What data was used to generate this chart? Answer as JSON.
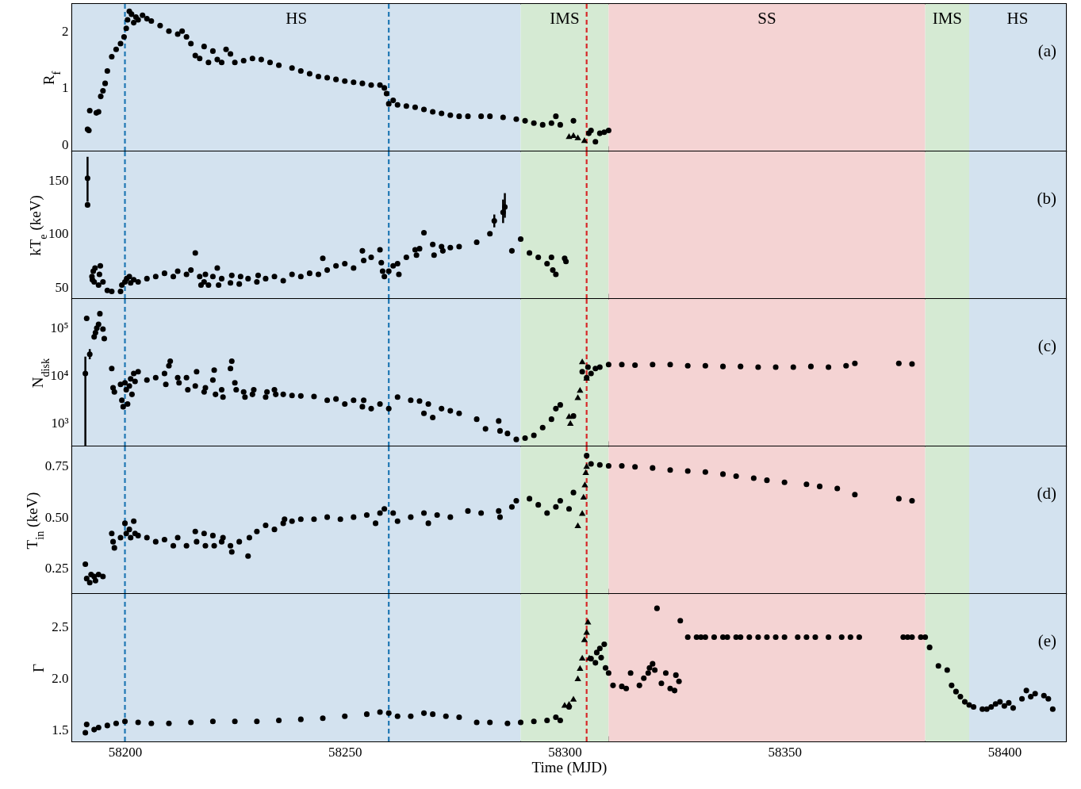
{
  "chart_data": [
    {
      "type": "scatter",
      "ylabel": "R$_{f}$",
      "xlim": [
        58188,
        58414
      ],
      "ylim": [
        -0.12,
        2.48
      ],
      "yticks": [
        0,
        1,
        2
      ],
      "tick_labels": "y",
      "grid": false,
      "xticks": [
        {
          "value": 58190,
          "label": null
        },
        58200,
        {
          "value": 58210,
          "label": null
        },
        {
          "value": 58220,
          "label": null
        },
        {
          "value": 58230,
          "label": null
        },
        {
          "value": 58240,
          "label": null
        },
        58250,
        {
          "value": 58260,
          "label": null
        },
        {
          "value": 58270,
          "label": null
        },
        {
          "value": 58280,
          "label": null
        },
        {
          "value": 58290,
          "label": null
        },
        58300,
        {
          "value": 58310,
          "label": null
        },
        {
          "value": 58320,
          "label": null
        },
        {
          "value": 58330,
          "label": null
        },
        {
          "value": 58340,
          "label": null
        },
        58350,
        {
          "value": 58360,
          "label": null
        },
        {
          "value": 58370,
          "label": null
        },
        {
          "value": 58380,
          "label": null
        },
        {
          "value": 58390,
          "label": null
        },
        58400,
        {
          "value": 58410,
          "label": null
        }
      ],
      "bands": [
        {
          "axis": "x",
          "from": 58188,
          "to": 58290,
          "label": "HS",
          "color": "#d3e2ef"
        },
        {
          "axis": "x",
          "from": 58290,
          "to": 58310,
          "label": "IMS",
          "color": "#d5ead3"
        },
        {
          "axis": "x",
          "from": 58310,
          "to": 58382,
          "label": "SS",
          "color": "#f4d3d3"
        },
        {
          "axis": "x",
          "from": 58382,
          "to": 58392,
          "label": "IMS",
          "color": "#d5ead3"
        },
        {
          "axis": "x",
          "from": 58392,
          "to": 58414,
          "label": "HS",
          "color": "#d3e2ef"
        }
      ],
      "ref_lines": [
        {
          "axis": "x",
          "value": 58200,
          "color": "#1f77b4",
          "line_style": "dashed"
        },
        {
          "axis": "x",
          "value": 58260,
          "color": "#1f77b4",
          "line_style": "dashed"
        },
        {
          "axis": "x",
          "value": 58305,
          "color": "#d62728",
          "line_style": "dashed"
        }
      ],
      "annotations": [
        "(a)"
      ],
      "series": [
        {
          "color": "#000000",
          "marker": "circle",
          "x": [
            58191.5,
            58191.8,
            58192,
            58193.5,
            58194,
            58194.5,
            58195,
            58195.5,
            58196,
            58197,
            58198,
            58199,
            58199.8,
            58200.3,
            58200.6,
            58201,
            58201.5,
            58202,
            58202.5,
            58203,
            58204,
            58205,
            58206,
            58208,
            58210,
            58212,
            58213,
            58214,
            58215,
            58216,
            58217,
            58218,
            58219,
            58220,
            58221,
            58222,
            58223,
            58224,
            58225,
            58227,
            58229,
            58231,
            58233,
            58235,
            58238,
            58240,
            58242,
            58244,
            58246,
            58248,
            58250,
            58252,
            58254,
            58256,
            58258,
            58259,
            58259.5,
            58260,
            58261,
            58262,
            58264,
            58266,
            58268,
            58270,
            58272,
            58274,
            58276,
            58278,
            58281,
            58283,
            58286,
            58289,
            58291,
            58293,
            58295,
            58297,
            58298,
            58299,
            58302,
            58305.5,
            58306,
            58307,
            58308,
            58309,
            58310
          ],
          "values": [
            0.27,
            0.25,
            0.6,
            0.56,
            0.58,
            0.85,
            0.95,
            1.08,
            1.3,
            1.55,
            1.68,
            1.78,
            1.9,
            2.05,
            2.2,
            2.35,
            2.3,
            2.15,
            2.25,
            2.2,
            2.28,
            2.22,
            2.18,
            2.1,
            2.0,
            1.95,
            2.0,
            1.9,
            1.78,
            1.57,
            1.52,
            1.73,
            1.45,
            1.65,
            1.5,
            1.45,
            1.68,
            1.6,
            1.45,
            1.48,
            1.52,
            1.5,
            1.45,
            1.4,
            1.35,
            1.3,
            1.25,
            1.2,
            1.18,
            1.15,
            1.12,
            1.1,
            1.08,
            1.05,
            1.05,
            1.0,
            0.9,
            0.72,
            0.78,
            0.7,
            0.68,
            0.66,
            0.62,
            0.58,
            0.55,
            0.52,
            0.5,
            0.5,
            0.5,
            0.5,
            0.48,
            0.45,
            0.42,
            0.38,
            0.35,
            0.38,
            0.5,
            0.35,
            0.42,
            0.2,
            0.25,
            0.05,
            0.2,
            0.22,
            0.25
          ]
        },
        {
          "color": "#000000",
          "marker": "triangle",
          "x": [
            58301,
            58302,
            58303,
            58304.5
          ],
          "values": [
            0.15,
            0.17,
            0.13,
            0.08
          ]
        }
      ]
    },
    {
      "type": "scatter",
      "ylabel": "kT$_{e}$ (keV)",
      "xlim": [
        58188,
        58414
      ],
      "ylim": [
        39,
        177
      ],
      "yticks": [
        50,
        100,
        150
      ],
      "tick_labels": "y",
      "grid": false,
      "xticks": [
        {
          "value": 58190,
          "label": null
        },
        58200,
        {
          "value": 58210,
          "label": null
        },
        {
          "value": 58220,
          "label": null
        },
        {
          "value": 58230,
          "label": null
        },
        {
          "value": 58240,
          "label": null
        },
        58250,
        {
          "value": 58260,
          "label": null
        },
        {
          "value": 58270,
          "label": null
        },
        {
          "value": 58280,
          "label": null
        },
        {
          "value": 58290,
          "label": null
        },
        58300,
        {
          "value": 58310,
          "label": null
        },
        {
          "value": 58320,
          "label": null
        },
        {
          "value": 58330,
          "label": null
        },
        {
          "value": 58340,
          "label": null
        },
        58350,
        {
          "value": 58360,
          "label": null
        },
        {
          "value": 58370,
          "label": null
        },
        {
          "value": 58380,
          "label": null
        },
        {
          "value": 58390,
          "label": null
        },
        58400,
        {
          "value": 58410,
          "label": null
        }
      ],
      "bands": [
        {
          "axis": "x",
          "from": 58188,
          "to": 58290,
          "color": "#d3e2ef"
        },
        {
          "axis": "x",
          "from": 58290,
          "to": 58310,
          "color": "#d5ead3"
        },
        {
          "axis": "x",
          "from": 58310,
          "to": 58382,
          "color": "#f4d3d3"
        },
        {
          "axis": "x",
          "from": 58382,
          "to": 58392,
          "color": "#d5ead3"
        },
        {
          "axis": "x",
          "from": 58392,
          "to": 58414,
          "color": "#d3e2ef"
        }
      ],
      "ref_lines": [
        {
          "axis": "x",
          "value": 58200,
          "color": "#1f77b4",
          "line_style": "dashed"
        },
        {
          "axis": "x",
          "value": 58260,
          "color": "#1f77b4",
          "line_style": "dashed"
        },
        {
          "axis": "x",
          "value": 58305,
          "color": "#d62728",
          "line_style": "dashed"
        }
      ],
      "annotations": [
        "(b)"
      ],
      "series": [
        {
          "color": "#000000",
          "marker": "circle",
          "x": [
            58191.5,
            58192.5,
            58192.6,
            58192.8,
            58193,
            58193.2,
            58194,
            58194.2,
            58194.4,
            58195,
            58196,
            58197,
            58199,
            58199.3,
            58200,
            58200.4,
            58201,
            58201.3,
            58202,
            58203,
            58205,
            58207,
            58209,
            58211,
            58212,
            58214,
            58215,
            58216,
            58217,
            58217.3,
            58218,
            58218.3,
            58219,
            58220,
            58221,
            58221.3,
            58222,
            58224,
            58224.3,
            58226,
            58226.3,
            58228,
            58230,
            58230.3,
            58232,
            58234,
            58236,
            58238,
            58240,
            58242,
            58244,
            58245,
            58246,
            58248,
            58250,
            58252,
            58254,
            58254.3,
            58256,
            58258,
            58258.3,
            58258.6,
            58259,
            58260,
            58261,
            58262,
            58262.3,
            58264,
            58266,
            58266.3,
            58267,
            58268,
            58270,
            58270.3,
            58272,
            58272.3,
            58274,
            58276,
            58280,
            58283,
            58288,
            58290,
            58292,
            58294,
            58296,
            58297,
            58297.3,
            58298,
            58300,
            58300.3
          ],
          "values": [
            127,
            60,
            57,
            65,
            55,
            68,
            52,
            62,
            70,
            55,
            47,
            46,
            46,
            52,
            55,
            58,
            60,
            54,
            57,
            55,
            58,
            60,
            63,
            60,
            65,
            62,
            66,
            82,
            60,
            52,
            55,
            62,
            52,
            60,
            68,
            52,
            58,
            54,
            61,
            53,
            60,
            58,
            55,
            61,
            58,
            60,
            56,
            62,
            60,
            63,
            62,
            77,
            66,
            70,
            72,
            68,
            84,
            75,
            78,
            85,
            73,
            65,
            60,
            65,
            70,
            72,
            62,
            78,
            85,
            80,
            86,
            101,
            90,
            80,
            88,
            84,
            87,
            88,
            92,
            100,
            84,
            95,
            82,
            78,
            72,
            78,
            66,
            62,
            77,
            74
          ]
        },
        {
          "color": "#000000",
          "marker": "circle",
          "x": [
            58191.5,
            58284,
            58286,
            58286.4
          ],
          "values": [
            152,
            112,
            120,
            125
          ],
          "errors": [
            [
              130,
              172
            ],
            6,
            [
              110,
              132
            ],
            [
              115,
              138
            ]
          ]
        }
      ]
    },
    {
      "type": "scatter",
      "ylabel": "N$_{disk}$",
      "log": true,
      "xlim": [
        58188,
        58414
      ],
      "ylim": [
        320,
        410000
      ],
      "yticks": [
        {
          "value": 1000,
          "label": "10³"
        },
        {
          "value": 10000,
          "label": "10⁴"
        },
        {
          "value": 100000,
          "label": "10⁵"
        }
      ],
      "tick_labels": "y",
      "grid": false,
      "xticks": [
        {
          "value": 58190,
          "label": null
        },
        58200,
        {
          "value": 58210,
          "label": null
        },
        {
          "value": 58220,
          "label": null
        },
        {
          "value": 58230,
          "label": null
        },
        {
          "value": 58240,
          "label": null
        },
        58250,
        {
          "value": 58260,
          "label": null
        },
        {
          "value": 58270,
          "label": null
        },
        {
          "value": 58280,
          "label": null
        },
        {
          "value": 58290,
          "label": null
        },
        58300,
        {
          "value": 58310,
          "label": null
        },
        {
          "value": 58320,
          "label": null
        },
        {
          "value": 58330,
          "label": null
        },
        {
          "value": 58340,
          "label": null
        },
        58350,
        {
          "value": 58360,
          "label": null
        },
        {
          "value": 58370,
          "label": null
        },
        {
          "value": 58380,
          "label": null
        },
        {
          "value": 58390,
          "label": null
        },
        58400,
        {
          "value": 58410,
          "label": null
        }
      ],
      "bands": [
        {
          "axis": "x",
          "from": 58188,
          "to": 58290,
          "color": "#d3e2ef"
        },
        {
          "axis": "x",
          "from": 58290,
          "to": 58310,
          "color": "#d5ead3"
        },
        {
          "axis": "x",
          "from": 58310,
          "to": 58382,
          "color": "#f4d3d3"
        },
        {
          "axis": "x",
          "from": 58382,
          "to": 58392,
          "color": "#d5ead3"
        },
        {
          "axis": "x",
          "from": 58392,
          "to": 58414,
          "color": "#d3e2ef"
        }
      ],
      "ref_lines": [
        {
          "axis": "x",
          "value": 58200,
          "color": "#1f77b4",
          "line_style": "dashed"
        },
        {
          "axis": "x",
          "value": 58260,
          "color": "#1f77b4",
          "line_style": "dashed"
        },
        {
          "axis": "x",
          "value": 58305,
          "color": "#d62728",
          "line_style": "dashed"
        }
      ],
      "annotations": [
        "(c)"
      ],
      "series": [
        {
          "color": "#000000",
          "marker": "circle",
          "x": [
            58191.3,
            58193,
            58193.3,
            58193.6,
            58194,
            58194.3,
            58195,
            58195.3,
            58197,
            58197.3,
            58197.6,
            58199,
            58199.3,
            58199.6,
            58200,
            58200.3,
            58200.6,
            58201,
            58201.3,
            58201.6,
            58202,
            58202.3,
            58203,
            58205,
            58207,
            58209,
            58209.3,
            58210,
            58210.3,
            58212,
            58212.3,
            58214,
            58214.3,
            58216,
            58216.3,
            58218,
            58218.3,
            58220,
            58220.3,
            58220.6,
            58222,
            58222.3,
            58224,
            58224.3,
            58225,
            58225.3,
            58227,
            58227.3,
            58229,
            58229.3,
            58232,
            58232.3,
            58234,
            58234.3,
            58236,
            58238,
            58240,
            58243,
            58246,
            58248,
            58250,
            58252,
            58254,
            58254.3,
            58256,
            58258,
            58260,
            58262,
            58265,
            58267,
            58268,
            58269,
            58270,
            58272,
            58274,
            58276,
            58280,
            58282,
            58285,
            58285.3,
            58287,
            58289,
            58291,
            58293,
            58295,
            58297,
            58298,
            58299,
            58302,
            58304,
            58305,
            58305.3,
            58306,
            58307,
            58308,
            58310,
            58313,
            58316,
            58320,
            58324,
            58328,
            58332,
            58336,
            58340,
            58344,
            58348,
            58352,
            58356,
            58360,
            58364,
            58366,
            58376,
            58379
          ],
          "values": [
            160000,
            65000,
            80000,
            100000,
            120000,
            200000,
            95000,
            60000,
            14000,
            5500,
            4500,
            6500,
            3000,
            2200,
            7000,
            5000,
            2500,
            6000,
            8500,
            4000,
            11000,
            7500,
            12000,
            8000,
            9000,
            11000,
            6500,
            16000,
            20000,
            9000,
            7000,
            9000,
            5000,
            6000,
            12000,
            4500,
            5500,
            8000,
            13000,
            4000,
            5000,
            3500,
            14000,
            20000,
            7000,
            5000,
            4500,
            3500,
            4000,
            5000,
            3500,
            4500,
            5000,
            4000,
            4000,
            3800,
            3700,
            3600,
            3000,
            3200,
            2500,
            3000,
            2200,
            3000,
            2000,
            2500,
            2000,
            3500,
            3000,
            2900,
            1600,
            2500,
            1300,
            2000,
            1800,
            1600,
            1200,
            750,
            1100,
            680,
            600,
            450,
            480,
            550,
            800,
            1200,
            2000,
            2400,
            1400,
            12000,
            9000,
            15000,
            11000,
            14000,
            15000,
            17000,
            17000,
            16500,
            17000,
            17000,
            16000,
            16000,
            15500,
            15500,
            15000,
            15000,
            15000,
            15500,
            15000,
            16000,
            18000,
            18000,
            17500
          ]
        },
        {
          "color": "#000000",
          "marker": "circle",
          "x": [
            58191,
            58192
          ],
          "values": [
            11000,
            28000
          ],
          "errors": [
            [
              320,
              25000
            ],
            [
              22000,
              36000
            ]
          ]
        },
        {
          "color": "#000000",
          "marker": "triangle",
          "x": [
            58301,
            58301.3,
            58303,
            58303.5,
            58304,
            58305
          ],
          "values": [
            1400,
            1000,
            3500,
            5000,
            20000,
            9000
          ]
        }
      ]
    },
    {
      "type": "scatter",
      "ylabel": "T$_{in}$ (keV)",
      "xlim": [
        58188,
        58414
      ],
      "ylim": [
        0.125,
        0.845
      ],
      "yticks": [
        0.25,
        {
          "value": 0.5,
          "label": "0.50"
        },
        0.75
      ],
      "tick_labels": "y",
      "grid": false,
      "xticks": [
        {
          "value": 58190,
          "label": null
        },
        58200,
        {
          "value": 58210,
          "label": null
        },
        {
          "value": 58220,
          "label": null
        },
        {
          "value": 58230,
          "label": null
        },
        {
          "value": 58240,
          "label": null
        },
        58250,
        {
          "value": 58260,
          "label": null
        },
        {
          "value": 58270,
          "label": null
        },
        {
          "value": 58280,
          "label": null
        },
        {
          "value": 58290,
          "label": null
        },
        58300,
        {
          "value": 58310,
          "label": null
        },
        {
          "value": 58320,
          "label": null
        },
        {
          "value": 58330,
          "label": null
        },
        {
          "value": 58340,
          "label": null
        },
        58350,
        {
          "value": 58360,
          "label": null
        },
        {
          "value": 58370,
          "label": null
        },
        {
          "value": 58380,
          "label": null
        },
        {
          "value": 58390,
          "label": null
        },
        58400,
        {
          "value": 58410,
          "label": null
        }
      ],
      "bands": [
        {
          "axis": "x",
          "from": 58188,
          "to": 58290,
          "color": "#d3e2ef"
        },
        {
          "axis": "x",
          "from": 58290,
          "to": 58310,
          "color": "#d5ead3"
        },
        {
          "axis": "x",
          "from": 58310,
          "to": 58382,
          "color": "#f4d3d3"
        },
        {
          "axis": "x",
          "from": 58382,
          "to": 58392,
          "color": "#d5ead3"
        },
        {
          "axis": "x",
          "from": 58392,
          "to": 58414,
          "color": "#d3e2ef"
        }
      ],
      "ref_lines": [
        {
          "axis": "x",
          "value": 58200,
          "color": "#1f77b4",
          "line_style": "dashed"
        },
        {
          "axis": "x",
          "value": 58260,
          "color": "#1f77b4",
          "line_style": "dashed"
        },
        {
          "axis": "x",
          "value": 58305,
          "color": "#d62728",
          "line_style": "dashed"
        }
      ],
      "annotations": [
        "(d)"
      ],
      "series": [
        {
          "color": "#000000",
          "marker": "circle",
          "x": [
            58191,
            58191.3,
            58192,
            58192.3,
            58193,
            58193.3,
            58194,
            58195,
            58197,
            58197.3,
            58197.6,
            58199,
            58200,
            58200.3,
            58201,
            58201.3,
            58202,
            58202.3,
            58203,
            58205,
            58207,
            58209,
            58211,
            58212,
            58214,
            58216,
            58216.3,
            58218,
            58218.3,
            58220,
            58220.3,
            58222,
            58222.3,
            58224,
            58224.3,
            58226,
            58228,
            58228.3,
            58230,
            58232,
            58234,
            58236,
            58236.3,
            58238,
            58240,
            58243,
            58246,
            58249,
            58252,
            58255,
            58257,
            58258,
            58259,
            58261,
            58262,
            58265,
            58268,
            58269,
            58271,
            58274,
            58278,
            58281,
            58285,
            58285.3,
            58288,
            58289,
            58292,
            58294,
            58296,
            58298,
            58299,
            58301,
            58302,
            58305,
            58306,
            58308,
            58310,
            58313,
            58316,
            58320,
            58324,
            58328,
            58332,
            58336,
            58339,
            58343,
            58346,
            58350,
            58355,
            58358,
            58362,
            58366,
            58376,
            58379
          ],
          "values": [
            0.27,
            0.2,
            0.18,
            0.22,
            0.21,
            0.19,
            0.22,
            0.21,
            0.42,
            0.38,
            0.35,
            0.4,
            0.47,
            0.42,
            0.44,
            0.4,
            0.48,
            0.42,
            0.41,
            0.4,
            0.38,
            0.39,
            0.36,
            0.4,
            0.36,
            0.43,
            0.38,
            0.42,
            0.36,
            0.41,
            0.36,
            0.38,
            0.4,
            0.36,
            0.33,
            0.38,
            0.31,
            0.4,
            0.43,
            0.46,
            0.44,
            0.47,
            0.49,
            0.48,
            0.49,
            0.49,
            0.5,
            0.49,
            0.5,
            0.51,
            0.47,
            0.52,
            0.54,
            0.52,
            0.48,
            0.5,
            0.52,
            0.47,
            0.51,
            0.5,
            0.53,
            0.52,
            0.53,
            0.5,
            0.55,
            0.58,
            0.59,
            0.56,
            0.52,
            0.55,
            0.58,
            0.54,
            0.62,
            0.8,
            0.76,
            0.755,
            0.75,
            0.75,
            0.745,
            0.74,
            0.73,
            0.725,
            0.72,
            0.71,
            0.7,
            0.69,
            0.68,
            0.67,
            0.66,
            0.65,
            0.64,
            0.61,
            0.59,
            0.58
          ]
        },
        {
          "color": "#000000",
          "marker": "triangle",
          "x": [
            58303,
            58304,
            58304.3,
            58304.6,
            58304.8,
            58305
          ],
          "values": [
            0.46,
            0.52,
            0.6,
            0.66,
            0.72,
            0.75
          ]
        }
      ]
    },
    {
      "type": "scatter",
      "ylabel": "Γ",
      "xlabel": "Time (MJD)",
      "xlim": [
        58188,
        58414
      ],
      "ylim": [
        1.385,
        2.82
      ],
      "yticks": [
        1.5,
        {
          "value": 2,
          "label": "2.0"
        },
        2.5
      ],
      "grid": false,
      "xticks": [
        {
          "value": 58190,
          "label": null
        },
        58200,
        {
          "value": 58210,
          "label": null
        },
        {
          "value": 58220,
          "label": null
        },
        {
          "value": 58230,
          "label": null
        },
        {
          "value": 58240,
          "label": null
        },
        58250,
        {
          "value": 58260,
          "label": null
        },
        {
          "value": 58270,
          "label": null
        },
        {
          "value": 58280,
          "label": null
        },
        {
          "value": 58290,
          "label": null
        },
        58300,
        {
          "value": 58310,
          "label": null
        },
        {
          "value": 58320,
          "label": null
        },
        {
          "value": 58330,
          "label": null
        },
        {
          "value": 58340,
          "label": null
        },
        58350,
        {
          "value": 58360,
          "label": null
        },
        {
          "value": 58370,
          "label": null
        },
        {
          "value": 58380,
          "label": null
        },
        {
          "value": 58390,
          "label": null
        },
        58400,
        {
          "value": 58410,
          "label": null
        }
      ],
      "bands": [
        {
          "axis": "x",
          "from": 58188,
          "to": 58290,
          "color": "#d3e2ef"
        },
        {
          "axis": "x",
          "from": 58290,
          "to": 58310,
          "color": "#d5ead3"
        },
        {
          "axis": "x",
          "from": 58310,
          "to": 58382,
          "color": "#f4d3d3"
        },
        {
          "axis": "x",
          "from": 58382,
          "to": 58392,
          "color": "#d5ead3"
        },
        {
          "axis": "x",
          "from": 58392,
          "to": 58414,
          "color": "#d3e2ef"
        }
      ],
      "ref_lines": [
        {
          "axis": "x",
          "value": 58200,
          "color": "#1f77b4",
          "line_style": "dashed"
        },
        {
          "axis": "x",
          "value": 58260,
          "color": "#1f77b4",
          "line_style": "dashed"
        },
        {
          "axis": "x",
          "value": 58305,
          "color": "#d62728",
          "line_style": "dashed"
        }
      ],
      "annotations": [
        "(e)"
      ],
      "series": [
        {
          "color": "#000000",
          "marker": "circle",
          "x": [
            58191,
            58191.3,
            58193,
            58194,
            58196,
            58198,
            58200,
            58203,
            58206,
            58210,
            58215,
            58220,
            58225,
            58230,
            58235,
            58240,
            58245,
            58250,
            58255,
            58258,
            58260,
            58262,
            58265,
            58268,
            58270,
            58273,
            58276,
            58280,
            58283,
            58287,
            58290,
            58293,
            58296,
            58298,
            58299,
            58301,
            58306,
            58307,
            58307.3,
            58308,
            58308.3,
            58309,
            58309.3,
            58310,
            58311,
            58313,
            58314,
            58315,
            58317,
            58318,
            58319,
            58319.3,
            58320,
            58320.5,
            58321,
            58322,
            58323,
            58324,
            58325,
            58325.3,
            58326,
            58326.3,
            58328,
            58330,
            58331,
            58332,
            58334,
            58336,
            58337,
            58339,
            58340,
            58342,
            58344,
            58346,
            58348,
            58350,
            58353,
            58355,
            58357,
            58360,
            58363,
            58365,
            58367,
            58377,
            58378,
            58379,
            58381,
            58382,
            58383,
            58385,
            58387,
            58388,
            58389,
            58390,
            58391,
            58392,
            58393,
            58395,
            58396,
            58397,
            58398,
            58399,
            58400,
            58401,
            58402,
            58404,
            58405,
            58406,
            58407,
            58409,
            58410,
            58411
          ],
          "values": [
            1.47,
            1.55,
            1.5,
            1.52,
            1.54,
            1.56,
            1.58,
            1.57,
            1.56,
            1.56,
            1.57,
            1.58,
            1.58,
            1.58,
            1.59,
            1.6,
            1.61,
            1.63,
            1.65,
            1.67,
            1.66,
            1.63,
            1.63,
            1.66,
            1.65,
            1.63,
            1.62,
            1.57,
            1.57,
            1.56,
            1.57,
            1.58,
            1.59,
            1.62,
            1.59,
            1.72,
            2.19,
            2.15,
            2.25,
            2.29,
            2.2,
            2.33,
            2.1,
            2.05,
            1.93,
            1.92,
            1.9,
            2.05,
            1.93,
            2.0,
            2.05,
            2.1,
            2.14,
            2.08,
            2.68,
            1.95,
            2.05,
            1.9,
            1.88,
            2.03,
            1.97,
            2.56,
            2.4,
            2.4,
            2.4,
            2.4,
            2.4,
            2.4,
            2.4,
            2.4,
            2.4,
            2.4,
            2.4,
            2.4,
            2.4,
            2.4,
            2.4,
            2.4,
            2.4,
            2.4,
            2.4,
            2.4,
            2.4,
            2.4,
            2.4,
            2.4,
            2.4,
            2.4,
            2.3,
            2.12,
            2.08,
            1.93,
            1.87,
            1.82,
            1.77,
            1.74,
            1.72,
            1.7,
            1.7,
            1.72,
            1.75,
            1.77,
            1.73,
            1.76,
            1.71,
            1.8,
            1.88,
            1.82,
            1.85,
            1.83,
            1.8,
            1.7
          ]
        },
        {
          "color": "#000000",
          "marker": "triangle",
          "x": [
            58300,
            58301,
            58302,
            58303,
            58303.5,
            58304,
            58304.5,
            58305,
            58305.3,
            58305.6
          ],
          "values": [
            1.74,
            1.75,
            1.8,
            2.0,
            2.1,
            2.2,
            2.38,
            2.45,
            2.55,
            2.2
          ]
        }
      ]
    }
  ]
}
